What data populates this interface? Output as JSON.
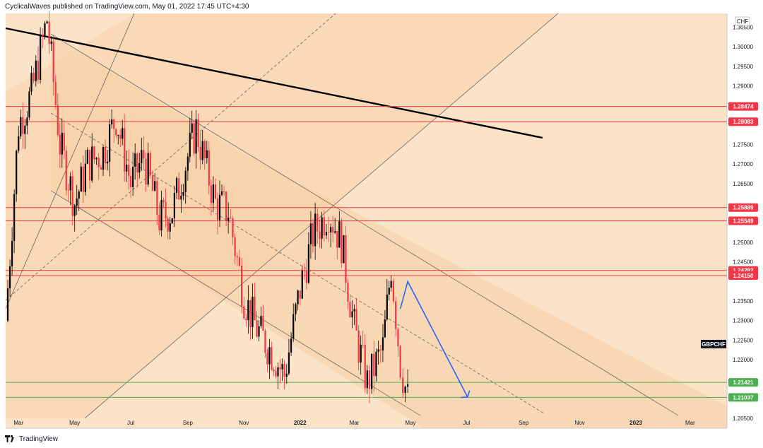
{
  "header": {
    "publisher_line": "CyclicalWaves published on TradingView.com, May 01, 2022 17:45 UTC+4:30"
  },
  "footer": {
    "brand": "TradingView"
  },
  "price_axis": {
    "currency": "CHF",
    "ticks": [
      "1.30500",
      "1.30000",
      "1.29500",
      "1.29000",
      "1.27500",
      "1.27000",
      "1.26500",
      "1.25000",
      "1.24500",
      "1.23500",
      "1.23000",
      "1.22500",
      "1.22000",
      "1.20500"
    ]
  },
  "time_axis": {
    "labels": [
      "Mar",
      "May",
      "Jul",
      "Sep",
      "Nov",
      "2022",
      "Mar",
      "May",
      "Jul",
      "Sep",
      "Nov",
      "2023",
      "Mar"
    ]
  },
  "colors": {
    "background": "#fbe3c8",
    "channel_fill": "#f7d0a6",
    "level_red": "#f23645",
    "level_green": "#4caf50",
    "candle_up": "#000000",
    "candle_down": "#f23645",
    "projection_blue": "#2962ff",
    "symbol_tag": "#131722"
  },
  "chart_data": {
    "type": "line",
    "symbol": "GBPCHF",
    "ylim": [
      1.2025,
      1.3085
    ],
    "x_range": [
      "2021-02-15",
      "2023-04-10"
    ],
    "price_series": {
      "x": [
        "2021-02-15",
        "2021-03-01",
        "2021-03-15",
        "2021-04-01",
        "2021-04-15",
        "2021-05-01",
        "2021-05-15",
        "2021-06-01",
        "2021-06-15",
        "2021-07-01",
        "2021-07-15",
        "2021-08-01",
        "2021-08-15",
        "2021-09-01",
        "2021-09-10",
        "2021-10-01",
        "2021-10-15",
        "2021-11-01",
        "2021-11-15",
        "2021-12-01",
        "2021-12-15",
        "2022-01-01",
        "2022-01-15",
        "2022-02-01",
        "2022-02-15",
        "2022-03-01",
        "2022-03-15",
        "2022-04-01",
        "2022-04-10",
        "2022-04-20",
        "2022-04-28"
      ],
      "y": [
        1.23,
        1.28,
        1.288,
        1.307,
        1.275,
        1.26,
        1.27,
        1.273,
        1.282,
        1.265,
        1.272,
        1.256,
        1.258,
        1.272,
        1.279,
        1.26,
        1.258,
        1.236,
        1.228,
        1.222,
        1.216,
        1.238,
        1.252,
        1.258,
        1.25,
        1.228,
        1.214,
        1.223,
        1.244,
        1.219,
        1.21
      ]
    },
    "horizontal_levels": [
      {
        "label": "1.28474",
        "value": 1.28474,
        "color": "red"
      },
      {
        "label": "1.28083",
        "value": 1.28083,
        "color": "red"
      },
      {
        "label": "1.25889",
        "value": 1.25889,
        "color": "red"
      },
      {
        "label": "1.25549",
        "value": 1.25549,
        "color": "red"
      },
      {
        "label": "1.24282",
        "value": 1.24282,
        "color": "red"
      },
      {
        "label": "1.24150",
        "value": 1.2415,
        "color": "red"
      },
      {
        "label": "1.21421",
        "value": 1.21421,
        "color": "green"
      },
      {
        "label": "1.21037",
        "value": 1.21037,
        "color": "green"
      }
    ],
    "projection_path": [
      {
        "x": "2022-04-20",
        "y": 1.233
      },
      {
        "x": "2022-04-28",
        "y": 1.24
      },
      {
        "x": "2022-07-02",
        "y": 1.2105
      }
    ]
  }
}
